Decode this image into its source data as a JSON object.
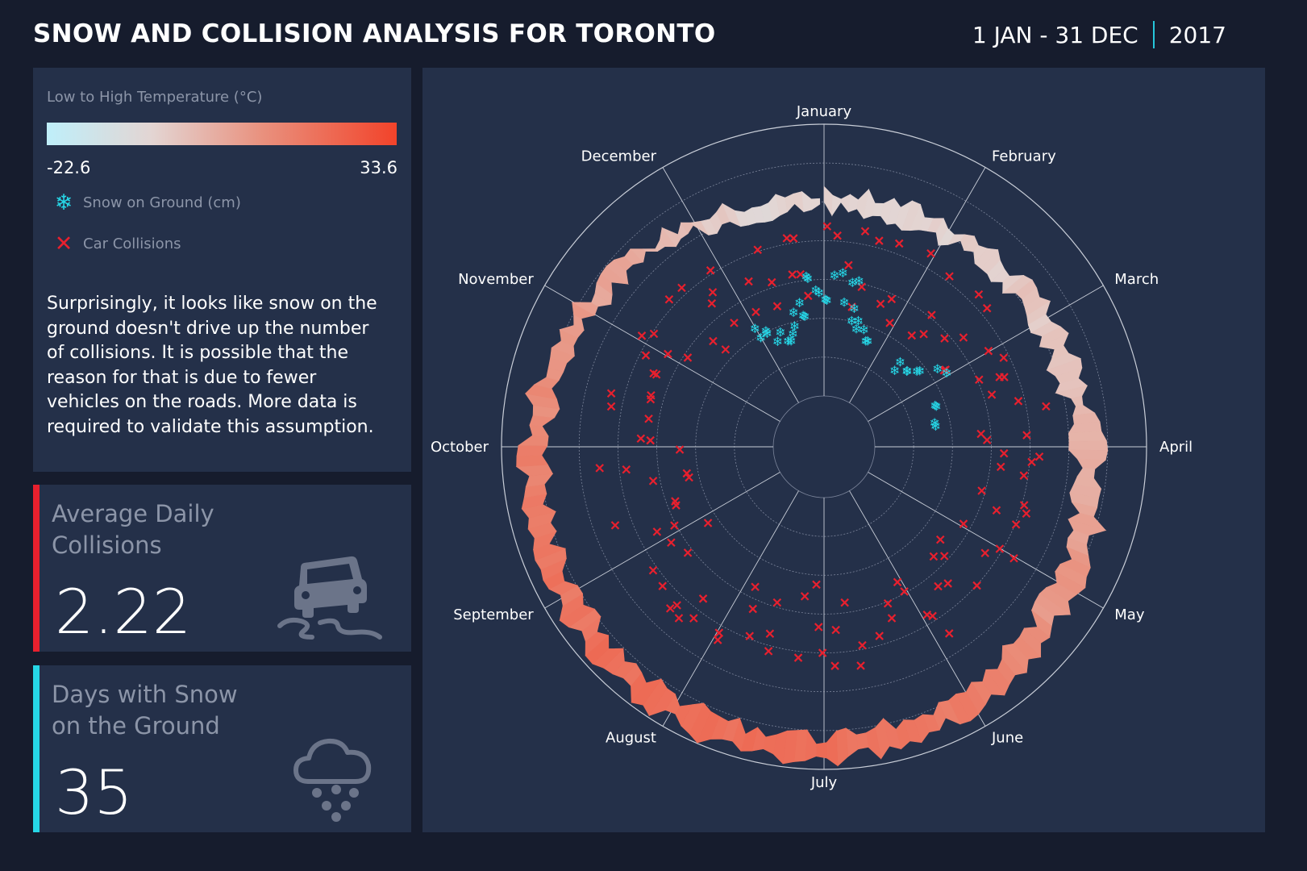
{
  "header": {
    "title": "SNOW AND COLLISION ANALYSIS FOR TORONTO",
    "date_range": "1 JAN - 31 DEC",
    "year": "2017"
  },
  "legend": {
    "temperature_title": "Low to High Temperature (°C)",
    "temp_min": "-22.6",
    "temp_max": "33.6",
    "snow_label": "Snow on Ground (cm)",
    "snow_icon": "snowflake-icon",
    "collision_label": "Car Collisions",
    "collision_icon": "cross-icon",
    "colors": {
      "cold": "#bfeffa",
      "hot": "#f2432a",
      "snow": "#26d6e6",
      "collision": "#e8202e"
    }
  },
  "description": "Surprisingly, it looks like snow on the ground doesn't drive up the number of collisions. It is possible that the reason for that is due to fewer vehicles on the roads. More data is required to validate this assumption.",
  "kpis": [
    {
      "label_line1": "Average Daily",
      "label_line2": "Collisions",
      "value": "2.22",
      "icon": "car-skid-icon",
      "accent": "#e8202e"
    },
    {
      "label_line1": "Days with Snow",
      "label_line2": "on the Ground",
      "value": "35",
      "icon": "snow-cloud-icon",
      "accent": "#26d6e6"
    }
  ],
  "chart_data": {
    "type": "polar",
    "title": "",
    "months": [
      "January",
      "February",
      "March",
      "April",
      "May",
      "June",
      "July",
      "August",
      "September",
      "October",
      "November",
      "December"
    ],
    "temperature": {
      "unit": "°C",
      "range": [
        -22.6,
        33.6
      ],
      "monthly_low_high": [
        {
          "month": "January",
          "low": -9,
          "high": -1
        },
        {
          "month": "February",
          "low": -8,
          "high": 1
        },
        {
          "month": "March",
          "low": -6,
          "high": 4
        },
        {
          "month": "April",
          "low": 2,
          "high": 14
        },
        {
          "month": "May",
          "low": 8,
          "high": 19
        },
        {
          "month": "June",
          "low": 14,
          "high": 25
        },
        {
          "month": "July",
          "low": 17,
          "high": 28
        },
        {
          "month": "August",
          "low": 16,
          "high": 26
        },
        {
          "month": "September",
          "low": 13,
          "high": 24
        },
        {
          "month": "October",
          "low": 8,
          "high": 18
        },
        {
          "month": "November",
          "low": 1,
          "high": 7
        },
        {
          "month": "December",
          "low": -8,
          "high": -2
        }
      ]
    },
    "snow_on_ground_cm": [
      {
        "day": 1,
        "value": 6
      },
      {
        "day": 6,
        "value": 9
      },
      {
        "day": 10,
        "value": 6
      },
      {
        "day": 12,
        "value": 8
      },
      {
        "day": 14,
        "value": 5
      },
      {
        "day": 17,
        "value": 4
      },
      {
        "day": 22,
        "value": 3
      },
      {
        "day": 42,
        "value": 3
      },
      {
        "day": 47,
        "value": 3
      },
      {
        "day": 50,
        "value": 4
      },
      {
        "day": 58,
        "value": 6
      },
      {
        "day": 72,
        "value": 4
      },
      {
        "day": 80,
        "value": 3
      },
      {
        "day": 334,
        "value": 5
      },
      {
        "day": 339,
        "value": 5
      },
      {
        "day": 343,
        "value": 4
      },
      {
        "day": 346,
        "value": 3
      },
      {
        "day": 350,
        "value": 4
      },
      {
        "day": 354,
        "value": 6
      },
      {
        "day": 357,
        "value": 5
      },
      {
        "day": 361,
        "value": 8
      },
      {
        "day": 364,
        "value": 7
      }
    ],
    "collisions": {
      "average_daily": 2.22,
      "daily_counts": [
        {
          "day": 2,
          "value": 2
        },
        {
          "day": 9,
          "value": 3
        },
        {
          "day": 16,
          "value": 2
        },
        {
          "day": 23,
          "value": 3
        },
        {
          "day": 30,
          "value": 2
        },
        {
          "day": 37,
          "value": 3
        },
        {
          "day": 44,
          "value": 2
        },
        {
          "day": 51,
          "value": 3
        },
        {
          "day": 58,
          "value": 3
        },
        {
          "day": 65,
          "value": 2
        },
        {
          "day": 72,
          "value": 3
        },
        {
          "day": 79,
          "value": 2
        },
        {
          "day": 86,
          "value": 3
        },
        {
          "day": 93,
          "value": 3
        },
        {
          "day": 100,
          "value": 2
        },
        {
          "day": 107,
          "value": 3
        },
        {
          "day": 114,
          "value": 2
        },
        {
          "day": 121,
          "value": 3
        },
        {
          "day": 128,
          "value": 2
        },
        {
          "day": 135,
          "value": 3
        },
        {
          "day": 142,
          "value": 2
        },
        {
          "day": 149,
          "value": 3
        },
        {
          "day": 156,
          "value": 2
        },
        {
          "day": 163,
          "value": 3
        },
        {
          "day": 170,
          "value": 2
        },
        {
          "day": 177,
          "value": 3
        },
        {
          "day": 184,
          "value": 3
        },
        {
          "day": 191,
          "value": 2
        },
        {
          "day": 198,
          "value": 3
        },
        {
          "day": 205,
          "value": 2
        },
        {
          "day": 212,
          "value": 3
        },
        {
          "day": 219,
          "value": 2
        },
        {
          "day": 226,
          "value": 3
        },
        {
          "day": 233,
          "value": 2
        },
        {
          "day": 240,
          "value": 3
        },
        {
          "day": 247,
          "value": 2
        },
        {
          "day": 254,
          "value": 3
        },
        {
          "day": 261,
          "value": 3
        },
        {
          "day": 268,
          "value": 2
        },
        {
          "day": 275,
          "value": 3
        },
        {
          "day": 282,
          "value": 2
        },
        {
          "day": 289,
          "value": 3
        },
        {
          "day": 296,
          "value": 2
        },
        {
          "day": 303,
          "value": 3
        },
        {
          "day": 310,
          "value": 2
        },
        {
          "day": 317,
          "value": 3
        },
        {
          "day": 324,
          "value": 2
        },
        {
          "day": 331,
          "value": 3
        },
        {
          "day": 338,
          "value": 2
        },
        {
          "day": 345,
          "value": 3
        },
        {
          "day": 352,
          "value": 2
        },
        {
          "day": 359,
          "value": 3
        }
      ]
    }
  }
}
